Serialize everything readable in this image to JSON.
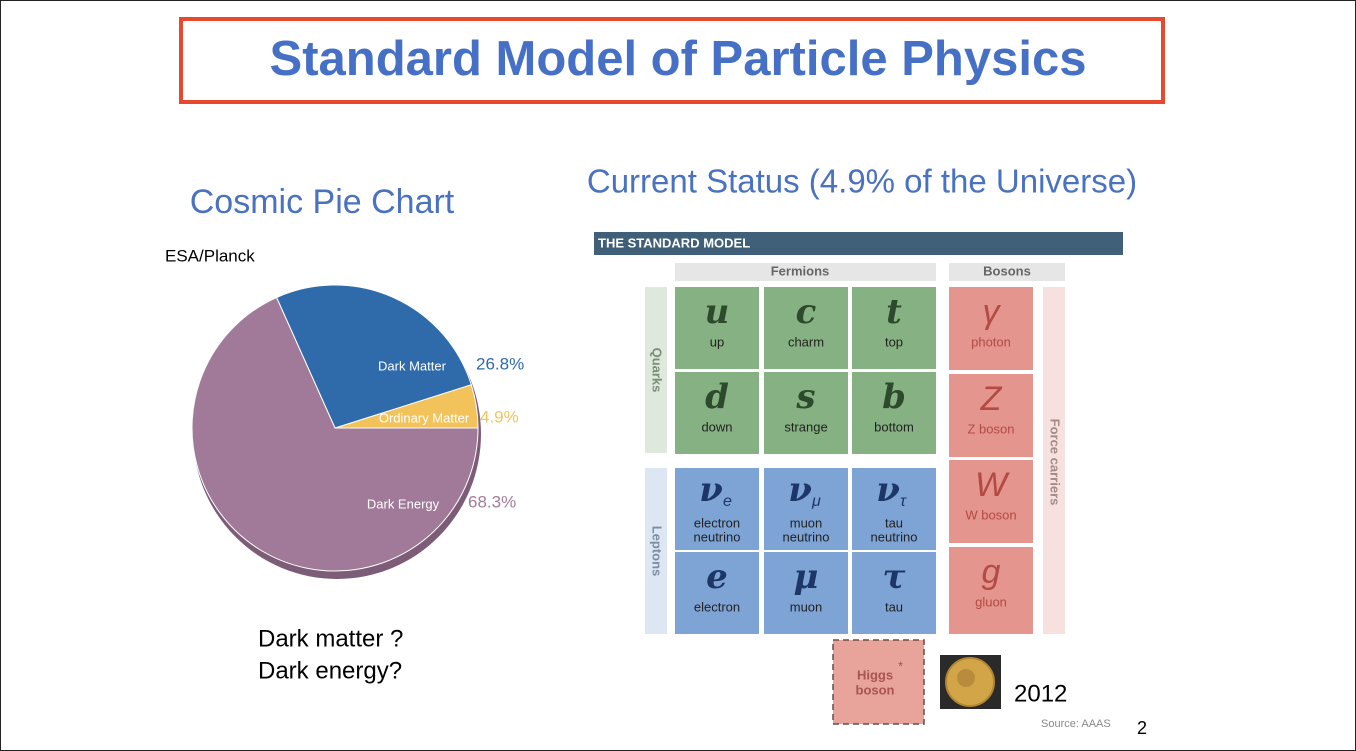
{
  "slide": {
    "title": "Standard Model of Particle Physics",
    "page_number": "2",
    "questions": [
      "Dark matter ?",
      "Dark energy?"
    ]
  },
  "chart_data": {
    "type": "pie",
    "title": "Cosmic Pie Chart",
    "source": "ESA/Planck",
    "categories": [
      "Ordinary Matter",
      "Dark Matter",
      "Dark Energy"
    ],
    "values": [
      4.9,
      26.8,
      68.3
    ],
    "value_labels": [
      "4.9%",
      "26.8%",
      "68.3%"
    ],
    "colors": [
      "#f2c35a",
      "#2f6aaa",
      "#a27a99"
    ]
  },
  "standard_model": {
    "title": "Current Status (4.9% of the Universe)",
    "header": "THE STANDARD MODEL",
    "fermions_label": "Fermions",
    "bosons_label": "Bosons",
    "quarks_label": "Quarks",
    "leptons_label": "Leptons",
    "force_carriers_label": "Force carriers",
    "quarks": [
      {
        "symbol": "u",
        "name": [
          "up"
        ]
      },
      {
        "symbol": "c",
        "name": [
          "charm"
        ]
      },
      {
        "symbol": "t",
        "name": [
          "top"
        ]
      },
      {
        "symbol": "d",
        "name": [
          "down"
        ]
      },
      {
        "symbol": "s",
        "name": [
          "strange"
        ]
      },
      {
        "symbol": "b",
        "name": [
          "bottom"
        ]
      }
    ],
    "leptons": [
      {
        "symbol": "ν",
        "subscript": "e",
        "name": [
          "electron",
          "neutrino"
        ]
      },
      {
        "symbol": "ν",
        "subscript": "μ",
        "name": [
          "muon",
          "neutrino"
        ]
      },
      {
        "symbol": "ν",
        "subscript": "τ",
        "name": [
          "tau",
          "neutrino"
        ]
      },
      {
        "symbol": "e",
        "name": [
          "electron"
        ]
      },
      {
        "symbol": "μ",
        "name": [
          "muon"
        ]
      },
      {
        "symbol": "τ",
        "name": [
          "tau"
        ]
      }
    ],
    "bosons": [
      {
        "symbol": "γ",
        "name": [
          "photon"
        ]
      },
      {
        "symbol": "Z",
        "name": [
          "Z boson"
        ]
      },
      {
        "symbol": "W",
        "name": [
          "W boson"
        ]
      },
      {
        "symbol": "g",
        "name": [
          "gluon"
        ]
      }
    ],
    "higgs": {
      "name": [
        "Higgs",
        "boson"
      ],
      "mark": "*"
    },
    "nobel_year": "2012",
    "source": "Source: AAAS"
  }
}
